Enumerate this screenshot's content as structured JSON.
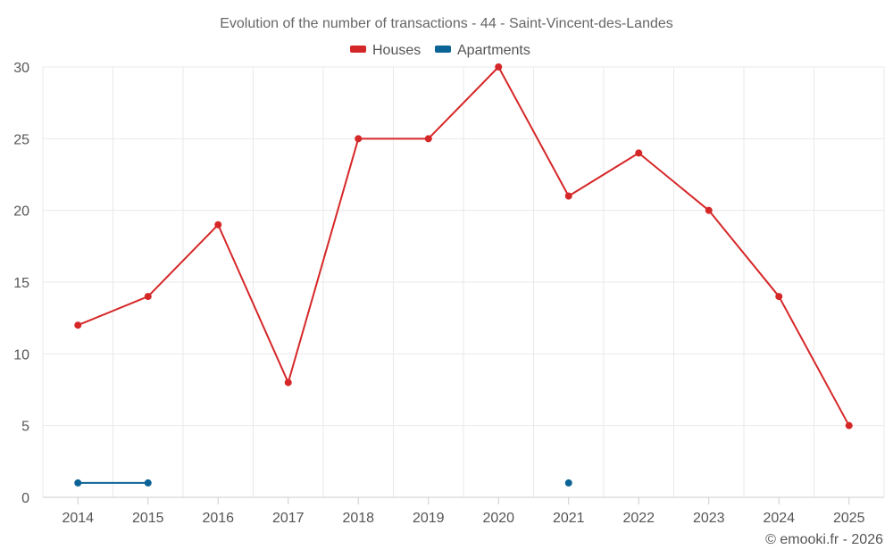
{
  "chart_data": {
    "type": "line",
    "title": "Evolution of the number of transactions - 44 - Saint-Vincent-des-Landes",
    "categories": [
      "2014",
      "2015",
      "2016",
      "2017",
      "2018",
      "2019",
      "2020",
      "2021",
      "2022",
      "2023",
      "2024",
      "2025"
    ],
    "series": [
      {
        "name": "Houses",
        "color": "#d62728",
        "values": [
          12,
          14,
          19,
          8,
          25,
          25,
          30,
          21,
          24,
          20,
          14,
          5
        ]
      },
      {
        "name": "Apartments",
        "color": "#0b6396",
        "values": [
          1,
          1,
          null,
          null,
          null,
          null,
          null,
          1,
          null,
          null,
          null,
          null
        ]
      }
    ],
    "ylim": [
      0,
      30
    ],
    "yticks": [
      0,
      5,
      10,
      15,
      20,
      25,
      30
    ],
    "xlabel": "",
    "ylabel": "",
    "grid": true,
    "legend_position": "top-center"
  },
  "credits": "© emooki.fr - 2026"
}
